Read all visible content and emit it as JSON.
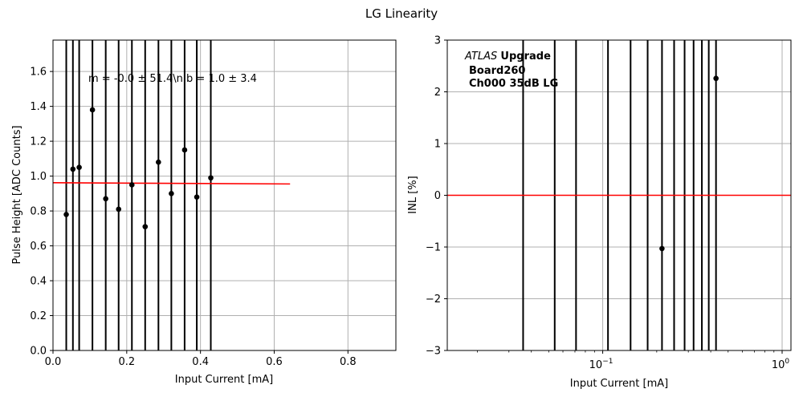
{
  "figure": {
    "title": "LG Linearity"
  },
  "chart_data": [
    {
      "type": "scatter",
      "xlabel": "Input Current [mA]",
      "ylabel": "Pulse Height [ADC Counts]",
      "xlim": [
        0.0,
        0.93
      ],
      "ylim": [
        0.0,
        1.78
      ],
      "xticks": [
        0.0,
        0.2,
        0.4,
        0.6,
        0.8
      ],
      "xtick_labels": [
        "0.0",
        "0.2",
        "0.4",
        "0.6",
        "0.8"
      ],
      "yticks": [
        0.0,
        0.2,
        0.4,
        0.6,
        0.8,
        1.0,
        1.2,
        1.4,
        1.6
      ],
      "ytick_labels": [
        "0.0",
        "0.2",
        "0.4",
        "0.6",
        "0.8",
        "1.0",
        "1.2",
        "1.4",
        "1.6"
      ],
      "grid": true,
      "annotation": "m = -0.0 ± 51.4\\n b = 1.0 ± 3.4",
      "points": [
        {
          "x": 0.036,
          "y": 0.78
        },
        {
          "x": 0.054,
          "y": 1.04
        },
        {
          "x": 0.071,
          "y": 1.05
        },
        {
          "x": 0.107,
          "y": 1.38
        },
        {
          "x": 0.143,
          "y": 0.87
        },
        {
          "x": 0.178,
          "y": 0.81
        },
        {
          "x": 0.214,
          "y": 0.95
        },
        {
          "x": 0.25,
          "y": 0.71
        },
        {
          "x": 0.286,
          "y": 1.08
        },
        {
          "x": 0.321,
          "y": 0.9
        },
        {
          "x": 0.357,
          "y": 1.15
        },
        {
          "x": 0.39,
          "y": 0.88
        },
        {
          "x": 0.428,
          "y": 0.99
        }
      ],
      "error_bars": "vertical lines spanning full y range at each point",
      "fit_line": {
        "x": [
          0.0,
          0.643
        ],
        "y": [
          0.962,
          0.955
        ],
        "color": "#ff0000"
      },
      "colors": {
        "points": "#000000",
        "grid": "#b0b0b0"
      }
    },
    {
      "type": "scatter",
      "xlabel": "Input Current [mA]",
      "ylabel": "INL [%]",
      "xscale": "log",
      "xlim": [
        0.0136,
        1.12
      ],
      "ylim": [
        -3,
        3
      ],
      "xticks": [
        0.1,
        1
      ],
      "yticks": [
        -3,
        -2,
        -1,
        0,
        1,
        2,
        3
      ],
      "ytick_labels": [
        "−3",
        "−2",
        "−1",
        "0",
        "1",
        "2",
        "3"
      ],
      "grid": true,
      "legend_text": {
        "italic": "ATLAS",
        "bold": "Upgrade",
        "line2": "Board260",
        "line3": "Ch000 35dB LG"
      },
      "points": [
        {
          "x": 0.214,
          "y": -1.03
        },
        {
          "x": 0.428,
          "y": 2.26
        }
      ],
      "vlines_x": [
        0.036,
        0.054,
        0.071,
        0.107,
        0.143,
        0.178,
        0.214,
        0.25,
        0.286,
        0.321,
        0.357,
        0.39,
        0.428
      ],
      "hline": {
        "y": 0,
        "color": "#ff0000"
      },
      "colors": {
        "points": "#000000",
        "grid": "#b0b0b0"
      }
    }
  ]
}
